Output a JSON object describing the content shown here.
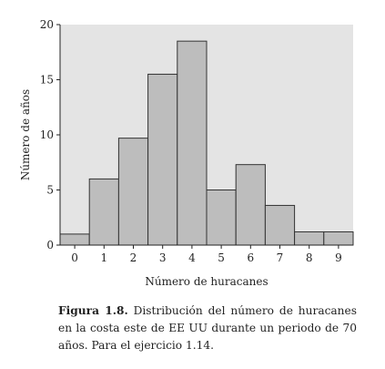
{
  "chart_data": {
    "type": "bar",
    "title": "",
    "xlabel": "Número de huracanes",
    "ylabel": "Número de años",
    "categories": [
      "0",
      "1",
      "2",
      "3",
      "4",
      "5",
      "6",
      "7",
      "8",
      "9"
    ],
    "values": [
      1,
      6,
      9.7,
      15.5,
      18.5,
      5,
      7.3,
      3.6,
      1.2,
      1.2
    ],
    "ylim": [
      0,
      20
    ],
    "yticks": [
      "0",
      "5",
      "10",
      "15",
      "20"
    ],
    "grid": false,
    "colors": {
      "plot_bg": "#e4e4e4",
      "bar_fill": "#bdbdbd",
      "bar_stroke": "#333333"
    }
  },
  "caption": {
    "label": "Figura 1.8.",
    "text": "Distribución del número de huracanes en la costa este de EE UU durante un periodo de 70 años. Para el ejercicio 1.14."
  }
}
